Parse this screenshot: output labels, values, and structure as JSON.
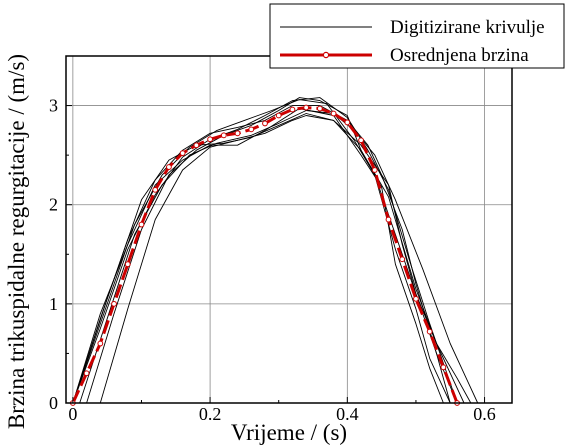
{
  "chart_data": {
    "type": "line",
    "xlabel": "Vrijeme / (s)",
    "ylabel": "Brzina trikuspidalne regurgitacije / (m/s)",
    "xlim": [
      -0.01,
      0.64
    ],
    "ylim": [
      0,
      3.5
    ],
    "x_ticks": [
      "0",
      "0.2",
      "0.4",
      "0.6"
    ],
    "y_ticks": [
      "0",
      "1",
      "2",
      "3"
    ],
    "x_tick_values": [
      0,
      0.2,
      0.4,
      0.6
    ],
    "y_tick_values": [
      0,
      1,
      2,
      3
    ],
    "grid": true,
    "legend_position": "top-right",
    "legend": [
      {
        "label": "Digitizirane krivulje",
        "color": "#000000",
        "style": "thin-line"
      },
      {
        "label": "Osrednjena brzina",
        "color": "#cc0000",
        "style": "dashed-with-circles"
      }
    ],
    "series": [
      {
        "name": "Osrednjena brzina",
        "x": [
          0,
          0.02,
          0.04,
          0.06,
          0.08,
          0.1,
          0.12,
          0.14,
          0.16,
          0.18,
          0.2,
          0.22,
          0.24,
          0.26,
          0.28,
          0.3,
          0.32,
          0.34,
          0.36,
          0.38,
          0.4,
          0.42,
          0.44,
          0.46,
          0.48,
          0.5,
          0.52,
          0.54,
          0.56
        ],
        "y": [
          0,
          0.3,
          0.6,
          1.0,
          1.4,
          1.8,
          2.15,
          2.38,
          2.52,
          2.6,
          2.66,
          2.7,
          2.72,
          2.76,
          2.82,
          2.9,
          2.96,
          2.98,
          2.97,
          2.92,
          2.83,
          2.65,
          2.35,
          1.85,
          1.45,
          1.05,
          0.72,
          0.36,
          0
        ]
      },
      {
        "x": [
          0.04,
          0.08,
          0.12,
          0.16,
          0.2,
          0.24,
          0.28,
          0.32,
          0.34,
          0.38,
          0.42,
          0.46,
          0.48,
          0.5,
          0.53,
          0.56,
          0.58
        ],
        "y": [
          0,
          0.95,
          1.85,
          2.35,
          2.58,
          2.65,
          2.72,
          2.85,
          2.9,
          2.85,
          2.6,
          2.2,
          1.6,
          1.1,
          0.6,
          0.25,
          0
        ]
      },
      {
        "x": [
          0.0,
          0.05,
          0.1,
          0.14,
          0.18,
          0.22,
          0.26,
          0.3,
          0.34,
          0.38,
          0.42,
          0.44,
          0.47,
          0.5,
          0.53,
          0.56
        ],
        "y": [
          0,
          1.05,
          2.05,
          2.45,
          2.6,
          2.62,
          2.68,
          2.8,
          2.92,
          2.85,
          2.55,
          2.3,
          1.7,
          1.1,
          0.5,
          0
        ]
      },
      {
        "x": [
          0.0,
          0.04,
          0.08,
          0.12,
          0.16,
          0.2,
          0.24,
          0.28,
          0.32,
          0.36,
          0.4,
          0.43,
          0.45,
          0.48,
          0.5,
          0.53,
          0.55
        ],
        "y": [
          0,
          0.85,
          1.65,
          2.25,
          2.55,
          2.72,
          2.78,
          2.85,
          3.0,
          3.0,
          2.85,
          2.6,
          2.3,
          1.75,
          1.2,
          0.5,
          0
        ]
      },
      {
        "x": [
          0.02,
          0.06,
          0.1,
          0.14,
          0.18,
          0.22,
          0.26,
          0.3,
          0.33,
          0.36,
          0.4,
          0.42,
          0.46,
          0.5,
          0.53,
          0.57
        ],
        "y": [
          0,
          0.9,
          1.75,
          2.3,
          2.55,
          2.7,
          2.8,
          2.95,
          3.08,
          3.05,
          2.9,
          2.55,
          2.08,
          1.15,
          0.6,
          0
        ]
      },
      {
        "x": [
          0.0,
          0.04,
          0.08,
          0.12,
          0.16,
          0.2,
          0.24,
          0.28,
          0.33,
          0.38,
          0.42,
          0.45,
          0.47,
          0.5,
          0.52,
          0.54
        ],
        "y": [
          0,
          0.9,
          1.6,
          2.2,
          2.45,
          2.6,
          2.6,
          2.75,
          2.97,
          2.9,
          2.5,
          2.18,
          1.4,
          0.8,
          0.35,
          0
        ]
      },
      {
        "x": [
          0.0,
          0.05,
          0.09,
          0.13,
          0.17,
          0.21,
          0.25,
          0.29,
          0.33,
          0.37,
          0.41,
          0.44,
          0.47,
          0.5,
          0.52,
          0.55
        ],
        "y": [
          0,
          1.0,
          1.8,
          2.3,
          2.58,
          2.75,
          2.85,
          2.95,
          3.06,
          3.02,
          2.65,
          2.3,
          1.55,
          0.95,
          0.45,
          0
        ]
      },
      {
        "x": [
          0.01,
          0.05,
          0.09,
          0.13,
          0.17,
          0.21,
          0.26,
          0.3,
          0.34,
          0.38,
          0.41,
          0.44,
          0.47,
          0.51,
          0.55,
          0.59
        ],
        "y": [
          0,
          0.85,
          1.7,
          2.2,
          2.5,
          2.62,
          2.7,
          2.82,
          2.95,
          2.92,
          2.75,
          2.5,
          2.05,
          1.35,
          0.6,
          0
        ]
      },
      {
        "x": [
          0.0,
          0.04,
          0.08,
          0.12,
          0.16,
          0.2,
          0.24,
          0.28,
          0.32,
          0.36,
          0.4,
          0.43,
          0.46,
          0.49,
          0.52,
          0.56
        ],
        "y": [
          0,
          0.75,
          1.55,
          2.1,
          2.48,
          2.66,
          2.76,
          2.9,
          3.05,
          3.08,
          2.88,
          2.55,
          2.15,
          1.45,
          0.8,
          0
        ]
      }
    ]
  }
}
